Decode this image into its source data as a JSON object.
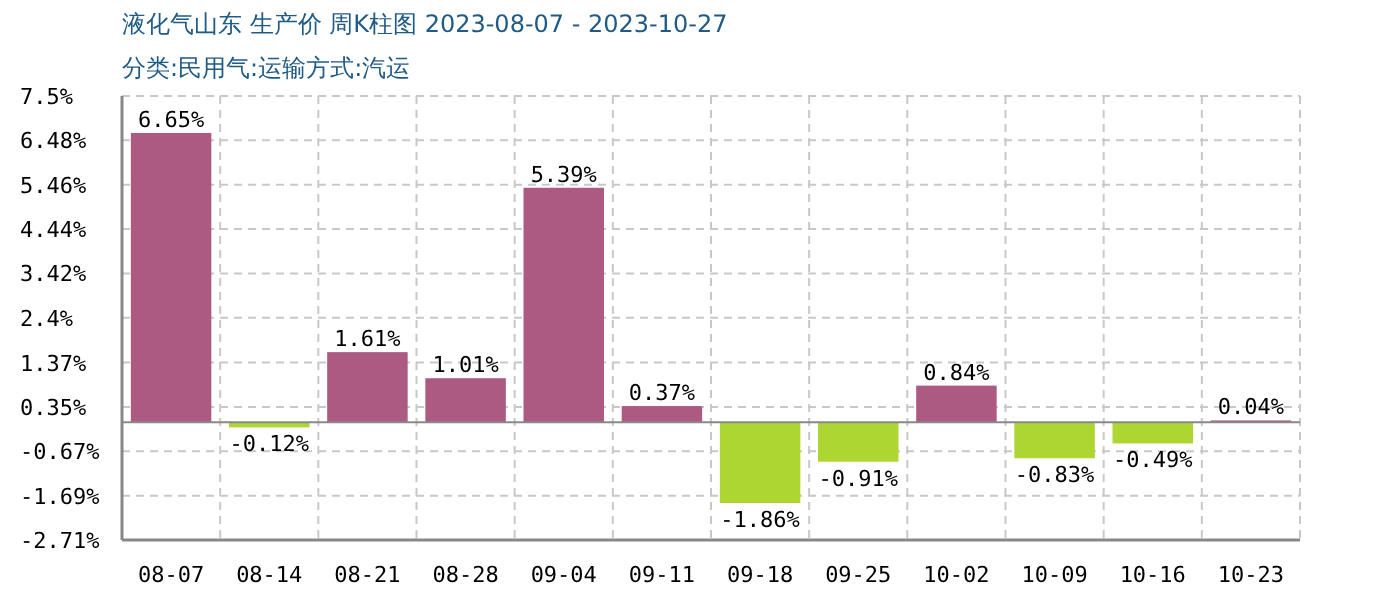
{
  "chart_data": {
    "type": "bar",
    "title": "液化气山东 生产价 周K柱图 2023-08-07 - 2023-10-27",
    "subtitle": "分类:民用气:运输方式:汽运",
    "categories": [
      "08-07",
      "08-14",
      "08-21",
      "08-28",
      "09-04",
      "09-11",
      "09-18",
      "09-25",
      "10-02",
      "10-09",
      "10-16",
      "10-23"
    ],
    "values": [
      6.65,
      -0.12,
      1.61,
      1.01,
      5.39,
      0.37,
      -1.86,
      -0.91,
      0.84,
      -0.83,
      -0.49,
      0.04
    ],
    "colors": [
      "#ad5a82",
      "#add633",
      "#ad5a82",
      "#ad5a82",
      "#ad5a82",
      "#ad5a82",
      "#add633",
      "#add633",
      "#ad5a82",
      "#add633",
      "#add633",
      "#ad5a82"
    ],
    "value_labels": [
      "6.65%",
      "-0.12%",
      "1.61%",
      "1.01%",
      "5.39%",
      "0.37%",
      "-1.86%",
      "-0.91%",
      "0.84%",
      "-0.83%",
      "-0.49%",
      "0.04%"
    ],
    "ylim": [
      -2.71,
      7.5
    ],
    "yticks": [
      {
        "value": 7.5,
        "label": "7.5%"
      },
      {
        "value": 6.48,
        "label": "6.48%"
      },
      {
        "value": 5.46,
        "label": "5.46%"
      },
      {
        "value": 4.44,
        "label": "4.44%"
      },
      {
        "value": 3.42,
        "label": "3.42%"
      },
      {
        "value": 2.4,
        "label": "2.4%"
      },
      {
        "value": 1.37,
        "label": "1.37%"
      },
      {
        "value": 0.35,
        "label": "0.35%"
      },
      {
        "value": -0.67,
        "label": "-0.67%"
      },
      {
        "value": -1.69,
        "label": "-1.69%"
      },
      {
        "value": -2.71,
        "label": "-2.71%"
      }
    ],
    "grid": true
  }
}
